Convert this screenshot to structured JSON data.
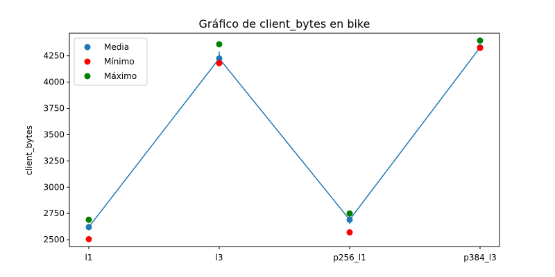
{
  "chart_data": {
    "type": "line",
    "title": "Gráfico de client_bytes en bike",
    "xlabel": "",
    "ylabel": "client_bytes",
    "categories": [
      "l1",
      "l3",
      "p256_l1",
      "p384_l3"
    ],
    "ylim": [
      2435,
      4465
    ],
    "yticks": [
      2500,
      2750,
      3000,
      3250,
      3500,
      3750,
      4000,
      4250
    ],
    "grid": false,
    "legend_position": "top-left",
    "line": {
      "values": [
        2620,
        4225,
        2690,
        4330
      ],
      "color": "#1f77b4"
    },
    "error_bars": {
      "low": [
        2590,
        4170,
        2650,
        4310
      ],
      "high": [
        2650,
        4290,
        2730,
        4360
      ]
    },
    "series": [
      {
        "name": "Media",
        "values": [
          2620,
          4225,
          2690,
          4330
        ],
        "color": "#1f77b4"
      },
      {
        "name": "Mínimo",
        "values": [
          2505,
          4180,
          2570,
          4325
        ],
        "color": "#ff0000"
      },
      {
        "name": "Máximo",
        "values": [
          2690,
          4360,
          2750,
          4395
        ],
        "color": "#008000"
      }
    ]
  }
}
